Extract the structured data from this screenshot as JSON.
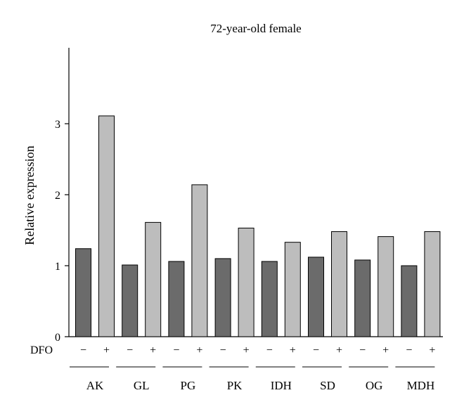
{
  "chart_data": {
    "type": "bar",
    "title": "72-year-old female",
    "ylabel": "Relative expression",
    "xlabel": "",
    "ylim": [
      0,
      4
    ],
    "yticks": [
      0,
      1,
      2,
      3
    ],
    "treatment_label": "DFO",
    "categories": [
      "AK",
      "GL",
      "PG",
      "PK",
      "IDH",
      "SD",
      "OG",
      "MDH"
    ],
    "series": [
      {
        "name": "−",
        "color": "#6b6b6b",
        "values": [
          1.24,
          1.01,
          1.06,
          1.1,
          1.06,
          1.12,
          1.08,
          1.0
        ]
      },
      {
        "name": "+",
        "color": "#bdbdbd",
        "values": [
          3.11,
          1.61,
          2.14,
          1.53,
          1.33,
          1.48,
          1.41,
          1.48
        ]
      }
    ],
    "grid": false,
    "legend": "none"
  }
}
